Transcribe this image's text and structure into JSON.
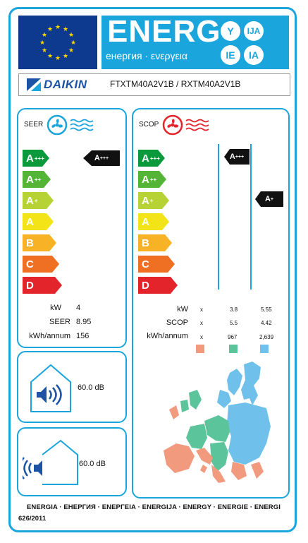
{
  "header": {
    "energ": "ENERG",
    "subtitle": "енергия · ενεργεια",
    "circles": [
      "Y",
      "IJA",
      "IE",
      "IA"
    ]
  },
  "brand": {
    "name": "DAIKIN",
    "model": "FTXTM40A2V1B / RXTM40A2V1B"
  },
  "colors": {
    "accent": "#1aa5dc",
    "flag": "#0d3a8e",
    "warm": "#f29a7e",
    "average": "#5cc49a",
    "cold": "#6fc0ea"
  },
  "classes": [
    {
      "letter": "A",
      "sup": "+++",
      "color": "#0a9a3c"
    },
    {
      "letter": "A",
      "sup": "++",
      "color": "#54b435"
    },
    {
      "letter": "A",
      "sup": "+",
      "color": "#b7d234"
    },
    {
      "letter": "A",
      "sup": "",
      "color": "#f2e416"
    },
    {
      "letter": "B",
      "sup": "",
      "color": "#f7b325"
    },
    {
      "letter": "C",
      "sup": "",
      "color": "#ef6f23"
    },
    {
      "letter": "D",
      "sup": "",
      "color": "#e3242b"
    }
  ],
  "seer": {
    "title": "SEER",
    "icon": "fan-cooling-icon",
    "rating": {
      "letter": "A",
      "sup": "+++"
    },
    "rows": [
      {
        "label": "kW",
        "value": "4"
      },
      {
        "label": "SEER",
        "value": "8.95"
      },
      {
        "label": "kWh/annum",
        "value": "156"
      }
    ]
  },
  "scop": {
    "title": "SCOP",
    "icon": "fan-heating-icon",
    "ratings": [
      {
        "letter": "A",
        "sup": "+++"
      },
      {
        "letter": "A",
        "sup": "+"
      }
    ],
    "rows": [
      {
        "label": "kW",
        "warm": "x",
        "average": "3.8",
        "cold": "5.55"
      },
      {
        "label": "SCOP",
        "warm": "x",
        "average": "5.5",
        "cold": "4.42"
      },
      {
        "label": "kWh/annum",
        "warm": "x",
        "average": "967",
        "cold": "2,639"
      }
    ]
  },
  "noise": {
    "indoor": "60.0",
    "outdoor": "60.0",
    "unit": "dB"
  },
  "footer": {
    "languages": "ENERGIA · ЕНЕРГИЯ · ΕΝΕΡΓΕΙΑ · ENERGIJA · ENERGY · ENERGIE · ENERGI",
    "regulation": "626/2011"
  }
}
